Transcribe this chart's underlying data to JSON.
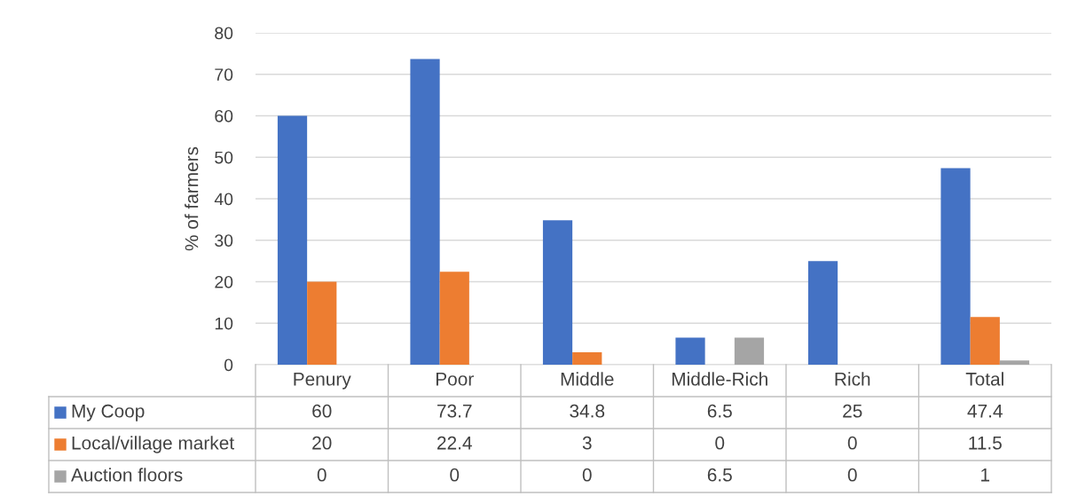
{
  "chart_data": {
    "type": "bar",
    "ylabel": "% of farmers",
    "categories": [
      "Penury",
      "Poor",
      "Middle",
      "Middle-Rich",
      "Rich",
      "Total"
    ],
    "series": [
      {
        "name": "My Coop",
        "color": "#4472c4",
        "values": [
          60,
          73.7,
          34.8,
          6.5,
          25,
          47.4
        ]
      },
      {
        "name": "Local/village market",
        "color": "#ed7d31",
        "values": [
          20,
          22.4,
          3,
          0,
          0,
          11.5
        ]
      },
      {
        "name": "Auction floors",
        "color": "#a5a5a5",
        "values": [
          0,
          0,
          0,
          6.5,
          0,
          1
        ]
      }
    ],
    "ylim": [
      0,
      80
    ],
    "yticks": [
      0,
      10,
      20,
      30,
      40,
      50,
      60,
      70,
      80
    ],
    "grid": "y",
    "legend": "bottom",
    "data_labels": true
  }
}
